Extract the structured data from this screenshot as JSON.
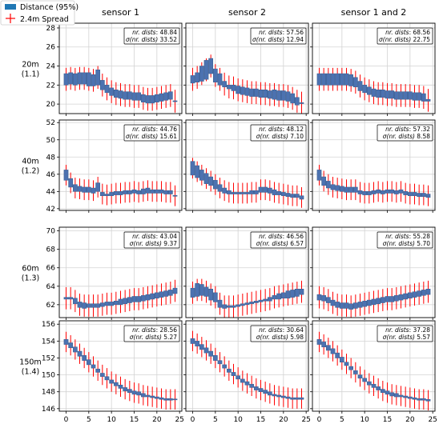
{
  "chart_data": {
    "type": "box",
    "legend": {
      "placement": "top-left",
      "entries": [
        {
          "label": "Distance (95%)",
          "color": "#1f77b4",
          "marker": "box"
        },
        {
          "label": "2.4m Spread",
          "color": "#ff0000",
          "marker": "plus"
        }
      ]
    },
    "columns": [
      "sensor 1",
      "sensor 2",
      "sensor 1 and 2"
    ],
    "x_ticks": [
      0,
      5,
      10,
      15,
      20,
      25
    ],
    "x_range": [
      -1.5,
      25.5
    ],
    "grid": true,
    "colors": {
      "box": "#4c72b0",
      "whisker": "#ff0000",
      "median": "#555555"
    },
    "rows": [
      {
        "label_line1": "20m",
        "label_line2": "(1.1)",
        "ylim": [
          19,
          28.5
        ],
        "yticks": [
          20,
          22,
          24,
          26,
          28
        ],
        "panels": [
          {
            "nr": "48.84",
            "sigma": "33.52",
            "medians": [
              22.6,
              22.7,
              22.6,
              22.7,
              22.7,
              22.6,
              22.5,
              22.8,
              22.0,
              21.6,
              21.3,
              21.1,
              21.0,
              20.9,
              20.9,
              20.8,
              20.8,
              20.6,
              20.5,
              20.5,
              20.6,
              20.7,
              20.8,
              20.9,
              20.3
            ],
            "half_box": [
              0.6,
              0.6,
              0.6,
              0.6,
              0.6,
              0.7,
              0.6,
              0.8,
              0.5,
              0.4,
              0.4,
              0.4,
              0.4,
              0.4,
              0.4,
              0.4,
              0.4,
              0.4,
              0.4,
              0.4,
              0.4,
              0.4,
              0.4,
              0.4,
              0.0
            ],
            "spread": 1.2
          },
          {
            "nr": "57.56",
            "sigma": "12.94",
            "medians": [
              22.6,
              22.8,
              23.2,
              23.6,
              24.0,
              23.0,
              22.6,
              22.1,
              21.8,
              21.7,
              21.5,
              21.4,
              21.3,
              21.2,
              21.2,
              21.1,
              21.1,
              21.0,
              21.0,
              20.9,
              20.9,
              20.8,
              20.6,
              20.3,
              20.1
            ],
            "half_box": [
              0.4,
              0.5,
              0.8,
              1.0,
              0.8,
              0.7,
              0.6,
              0.3,
              0.2,
              0.3,
              0.4,
              0.4,
              0.4,
              0.4,
              0.4,
              0.4,
              0.4,
              0.4,
              0.5,
              0.5,
              0.5,
              0.5,
              0.5,
              0.4,
              0.0
            ],
            "spread": 1.2
          },
          {
            "nr": "68.56",
            "sigma": "22.75",
            "medians": [
              22.6,
              22.6,
              22.6,
              22.6,
              22.6,
              22.6,
              22.6,
              22.5,
              22.3,
              21.9,
              21.6,
              21.4,
              21.2,
              21.1,
              21.1,
              21.0,
              21.0,
              20.9,
              20.9,
              20.9,
              20.9,
              20.8,
              20.8,
              20.7,
              20.4
            ],
            "half_box": [
              0.6,
              0.6,
              0.6,
              0.6,
              0.6,
              0.6,
              0.6,
              0.6,
              0.5,
              0.5,
              0.4,
              0.4,
              0.4,
              0.4,
              0.4,
              0.4,
              0.4,
              0.4,
              0.4,
              0.4,
              0.4,
              0.4,
              0.4,
              0.4,
              0.1
            ],
            "spread": 1.2
          }
        ]
      },
      {
        "label_line1": "40m",
        "label_line2": "(1.2)",
        "ylim": [
          41.8,
          52.3
        ],
        "yticks": [
          42,
          44,
          46,
          48,
          50,
          52
        ],
        "panels": [
          {
            "nr": "44.76",
            "sigma": "15.61",
            "medians": [
              45.9,
              45.0,
              44.4,
              44.3,
              44.2,
              44.2,
              44.1,
              44.5,
              43.7,
              43.6,
              43.7,
              43.8,
              43.8,
              43.9,
              43.9,
              44.0,
              43.9,
              44.0,
              44.1,
              44.0,
              44.0,
              44.0,
              43.9,
              43.9,
              43.5
            ],
            "half_box": [
              0.6,
              0.5,
              0.4,
              0.3,
              0.3,
              0.3,
              0.3,
              0.5,
              0.2,
              0.1,
              0.2,
              0.2,
              0.2,
              0.2,
              0.2,
              0.2,
              0.2,
              0.3,
              0.3,
              0.2,
              0.2,
              0.2,
              0.2,
              0.2,
              0.0
            ],
            "spread": 1.2
          },
          {
            "nr": "48.12",
            "sigma": "7.10",
            "medians": [
              46.7,
              46.3,
              45.9,
              45.5,
              45.2,
              44.8,
              44.4,
              44.1,
              43.9,
              43.8,
              43.8,
              43.8,
              43.8,
              43.9,
              43.9,
              44.2,
              44.2,
              44.1,
              43.9,
              43.8,
              43.7,
              43.6,
              43.5,
              43.5,
              43.3
            ],
            "half_box": [
              0.8,
              0.7,
              0.6,
              0.6,
              0.5,
              0.5,
              0.4,
              0.3,
              0.2,
              0.1,
              0.1,
              0.1,
              0.1,
              0.2,
              0.2,
              0.3,
              0.3,
              0.3,
              0.3,
              0.2,
              0.2,
              0.2,
              0.2,
              0.2,
              0.2
            ],
            "spread": 1.2
          },
          {
            "nr": "57.32",
            "sigma": "8.58",
            "medians": [
              45.9,
              45.2,
              44.8,
              44.5,
              44.4,
              44.3,
              44.2,
              44.2,
              44.2,
              43.9,
              43.8,
              43.8,
              43.9,
              44.0,
              43.9,
              44.0,
              44.0,
              43.9,
              44.0,
              43.8,
              43.7,
              43.7,
              43.6,
              43.6,
              43.5
            ],
            "half_box": [
              0.6,
              0.5,
              0.4,
              0.3,
              0.3,
              0.3,
              0.3,
              0.3,
              0.3,
              0.2,
              0.2,
              0.2,
              0.2,
              0.2,
              0.2,
              0.2,
              0.2,
              0.2,
              0.2,
              0.2,
              0.2,
              0.2,
              0.2,
              0.2,
              0.2
            ],
            "spread": 1.2
          }
        ]
      },
      {
        "label_line1": "60m",
        "label_line2": "(1.3)",
        "ylim": [
          60.6,
          70.4
        ],
        "yticks": [
          62,
          64,
          66,
          68,
          70
        ],
        "panels": [
          {
            "nr": "43.04",
            "sigma": "9.37",
            "medians": [
              62.7,
              62.7,
              62.4,
              62.0,
              61.9,
              61.9,
              61.9,
              61.9,
              62.0,
              62.1,
              62.1,
              62.2,
              62.3,
              62.4,
              62.5,
              62.6,
              62.6,
              62.7,
              62.8,
              62.9,
              63.0,
              63.1,
              63.2,
              63.3,
              63.5
            ],
            "half_box": [
              0.1,
              0.1,
              0.3,
              0.3,
              0.3,
              0.2,
              0.2,
              0.2,
              0.2,
              0.2,
              0.2,
              0.2,
              0.3,
              0.3,
              0.3,
              0.3,
              0.3,
              0.3,
              0.3,
              0.3,
              0.3,
              0.3,
              0.3,
              0.3,
              0.3
            ],
            "spread": 1.2
          },
          {
            "nr": "46.56",
            "sigma": "6.57",
            "medians": [
              63.3,
              63.6,
              63.6,
              63.4,
              63.1,
              62.8,
              62.1,
              61.8,
              61.8,
              61.8,
              61.9,
              62.0,
              62.1,
              62.2,
              62.3,
              62.4,
              62.5,
              62.6,
              62.8,
              62.9,
              63.0,
              63.1,
              63.2,
              63.3,
              63.4
            ],
            "half_box": [
              0.5,
              0.7,
              0.6,
              0.5,
              0.6,
              0.5,
              0.4,
              0.2,
              0.1,
              0.1,
              0.1,
              0.1,
              0.1,
              0.1,
              0.1,
              0.1,
              0.1,
              0.2,
              0.2,
              0.3,
              0.3,
              0.4,
              0.4,
              0.4,
              0.3
            ],
            "spread": 1.2
          },
          {
            "nr": "55.28",
            "sigma": "5.70",
            "medians": [
              62.8,
              62.7,
              62.5,
              62.2,
              62.0,
              61.9,
              61.9,
              61.8,
              61.9,
              62.0,
              62.1,
              62.2,
              62.3,
              62.4,
              62.5,
              62.6,
              62.6,
              62.7,
              62.8,
              62.9,
              63.0,
              63.1,
              63.2,
              63.3,
              63.4
            ],
            "half_box": [
              0.3,
              0.3,
              0.3,
              0.3,
              0.3,
              0.3,
              0.3,
              0.3,
              0.3,
              0.3,
              0.3,
              0.3,
              0.3,
              0.3,
              0.3,
              0.3,
              0.3,
              0.3,
              0.3,
              0.3,
              0.3,
              0.3,
              0.3,
              0.3,
              0.3
            ],
            "spread": 1.2
          }
        ]
      },
      {
        "label_line1": "150m",
        "label_line2": "(1.4)",
        "ylim": [
          145.7,
          156.4
        ],
        "yticks": [
          146,
          148,
          150,
          152,
          154,
          156
        ],
        "panels": [
          {
            "nr": "28.56",
            "sigma": "5.27",
            "medians": [
              153.9,
              153.5,
              153.0,
              152.5,
              152.0,
              151.5,
              151.0,
              150.5,
              150.0,
              149.6,
              149.2,
              148.9,
              148.6,
              148.3,
              148.1,
              147.9,
              147.8,
              147.6,
              147.5,
              147.4,
              147.3,
              147.2,
              147.1,
              147.1,
              147.1
            ],
            "half_box": [
              0.3,
              0.3,
              0.3,
              0.3,
              0.3,
              0.3,
              0.2,
              0.2,
              0.2,
              0.2,
              0.2,
              0.2,
              0.2,
              0.2,
              0.2,
              0.2,
              0.2,
              0.2,
              0.1,
              0.1,
              0.1,
              0.1,
              0.1,
              0.1,
              0.0
            ],
            "spread": 1.2
          },
          {
            "nr": "30.64",
            "sigma": "5.98",
            "medians": [
              154.0,
              153.7,
              153.3,
              152.9,
              152.5,
              152.0,
              151.5,
              151.0,
              150.5,
              150.1,
              149.7,
              149.3,
              149.0,
              148.7,
              148.4,
              148.2,
              148.0,
              147.8,
              147.6,
              147.5,
              147.4,
              147.3,
              147.2,
              147.2,
              147.2
            ],
            "half_box": [
              0.3,
              0.3,
              0.3,
              0.3,
              0.3,
              0.3,
              0.2,
              0.2,
              0.2,
              0.2,
              0.2,
              0.2,
              0.2,
              0.2,
              0.2,
              0.2,
              0.2,
              0.2,
              0.1,
              0.1,
              0.1,
              0.1,
              0.1,
              0.1,
              0.1
            ],
            "spread": 1.2
          },
          {
            "nr": "37.28",
            "sigma": "5.57",
            "medians": [
              153.9,
              153.6,
              153.2,
              152.8,
              152.3,
              151.8,
              151.3,
              150.8,
              150.3,
              149.8,
              149.4,
              149.0,
              148.7,
              148.4,
              148.1,
              147.9,
              147.7,
              147.6,
              147.5,
              147.4,
              147.3,
              147.2,
              147.1,
              147.1,
              147.0
            ],
            "half_box": [
              0.3,
              0.3,
              0.3,
              0.3,
              0.3,
              0.3,
              0.2,
              0.2,
              0.2,
              0.2,
              0.2,
              0.2,
              0.2,
              0.2,
              0.2,
              0.2,
              0.2,
              0.2,
              0.1,
              0.1,
              0.1,
              0.1,
              0.1,
              0.1,
              0.1
            ],
            "spread": 1.2
          }
        ]
      }
    ]
  }
}
